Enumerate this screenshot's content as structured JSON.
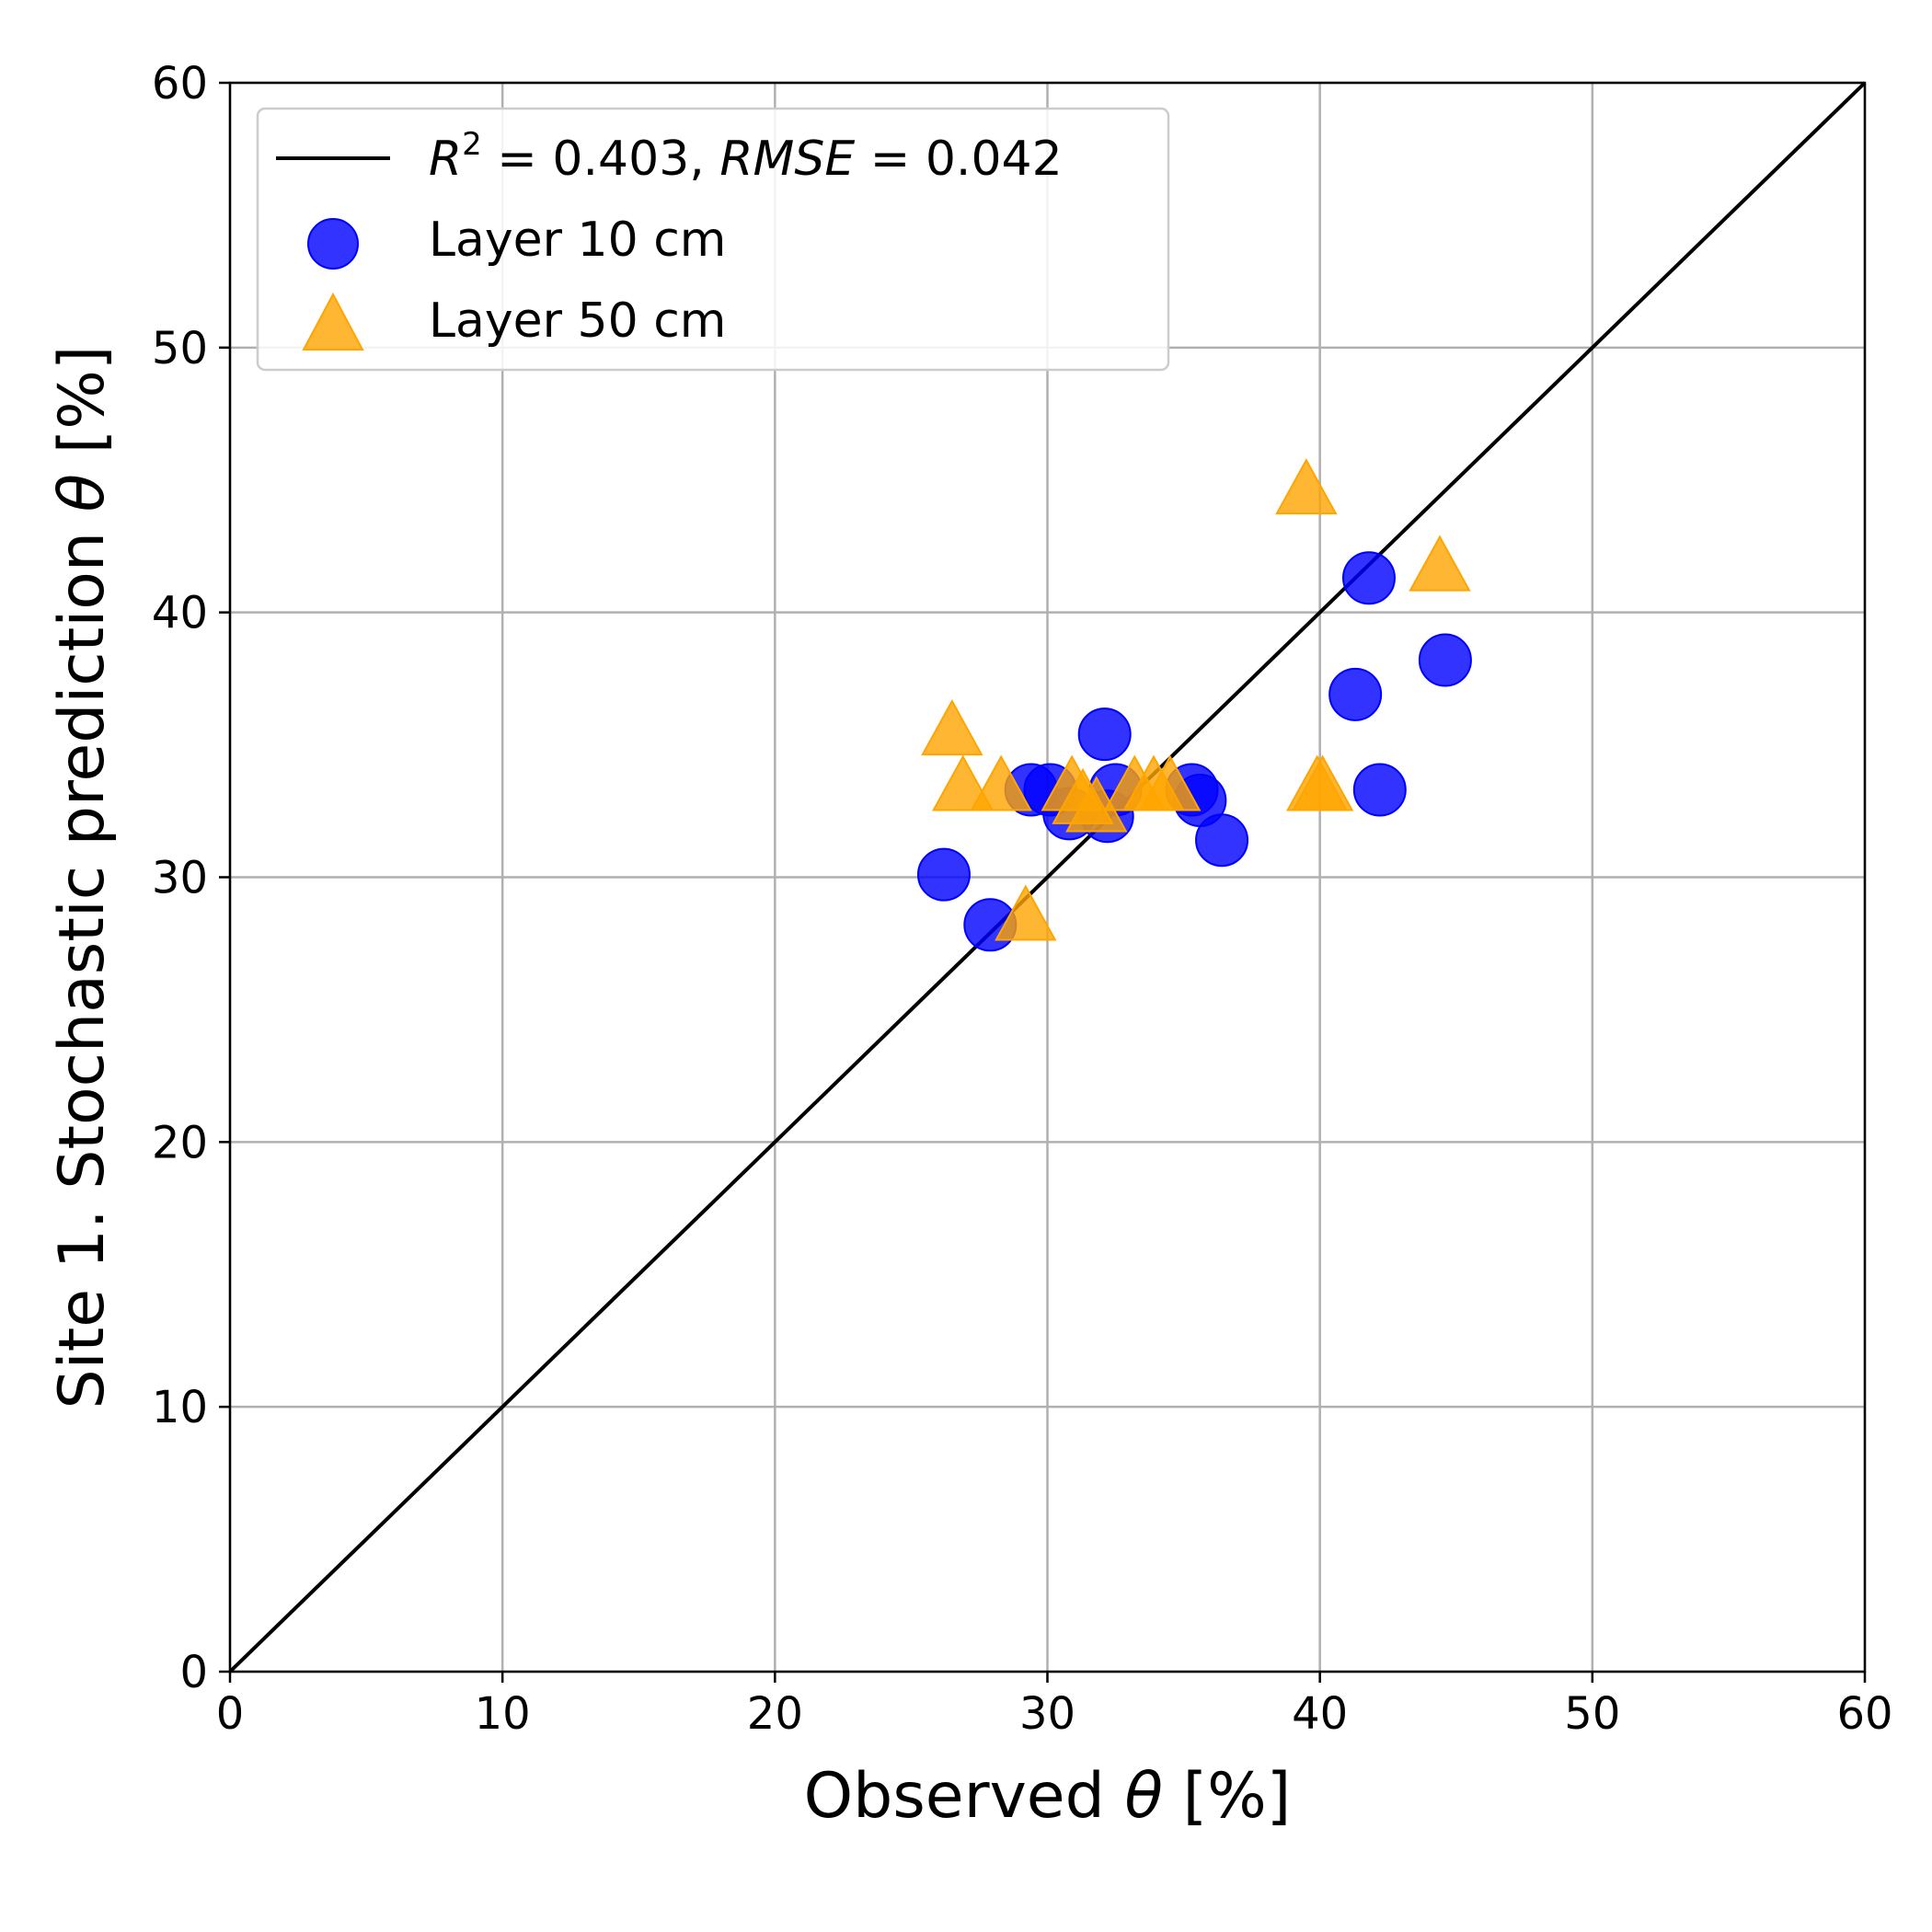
{
  "chart_data": {
    "type": "scatter",
    "xlabel_prefix": "Observed ",
    "xlabel_symbol": "θ",
    "xlabel_suffix": " [%]",
    "ylabel_prefix": "Site 1. Stochastic prediction ",
    "ylabel_symbol": "θ",
    "ylabel_suffix": " [%]",
    "xlim": [
      0,
      60
    ],
    "ylim": [
      0,
      60
    ],
    "xticks": [
      0,
      10,
      20,
      30,
      40,
      50,
      60
    ],
    "yticks": [
      0,
      10,
      20,
      30,
      40,
      50,
      60
    ],
    "grid": true,
    "legend_position": "top-left",
    "reference_line": {
      "label_parts": [
        "R",
        "2",
        " = 0.403, ",
        "RMSE",
        " = 0.042"
      ],
      "x": [
        0,
        60
      ],
      "y": [
        0,
        60
      ],
      "color": "#000000"
    },
    "series": [
      {
        "name": "Layer 10 cm",
        "marker": "circle",
        "color": "#0000ff",
        "points": [
          [
            26.2,
            30.1
          ],
          [
            27.9,
            28.2
          ],
          [
            29.4,
            33.3
          ],
          [
            30.1,
            33.3
          ],
          [
            30.8,
            32.4
          ],
          [
            32.2,
            32.3
          ],
          [
            32.1,
            35.4
          ],
          [
            32.5,
            33.3
          ],
          [
            35.3,
            33.3
          ],
          [
            35.6,
            32.9
          ],
          [
            36.4,
            31.4
          ],
          [
            41.3,
            36.9
          ],
          [
            41.8,
            41.3
          ],
          [
            42.2,
            33.3
          ],
          [
            44.6,
            38.2
          ]
        ]
      },
      {
        "name": "Layer 50 cm",
        "marker": "triangle",
        "color": "#ffa500",
        "points": [
          [
            26.5,
            35.4
          ],
          [
            26.9,
            33.3
          ],
          [
            28.3,
            33.3
          ],
          [
            29.2,
            28.4
          ],
          [
            30.9,
            33.3
          ],
          [
            31.3,
            32.8
          ],
          [
            31.8,
            32.5
          ],
          [
            33.2,
            33.3
          ],
          [
            33.9,
            33.3
          ],
          [
            34.5,
            33.3
          ],
          [
            39.5,
            44.5
          ],
          [
            39.9,
            33.3
          ],
          [
            40.1,
            33.3
          ],
          [
            44.4,
            41.6
          ]
        ]
      }
    ]
  }
}
